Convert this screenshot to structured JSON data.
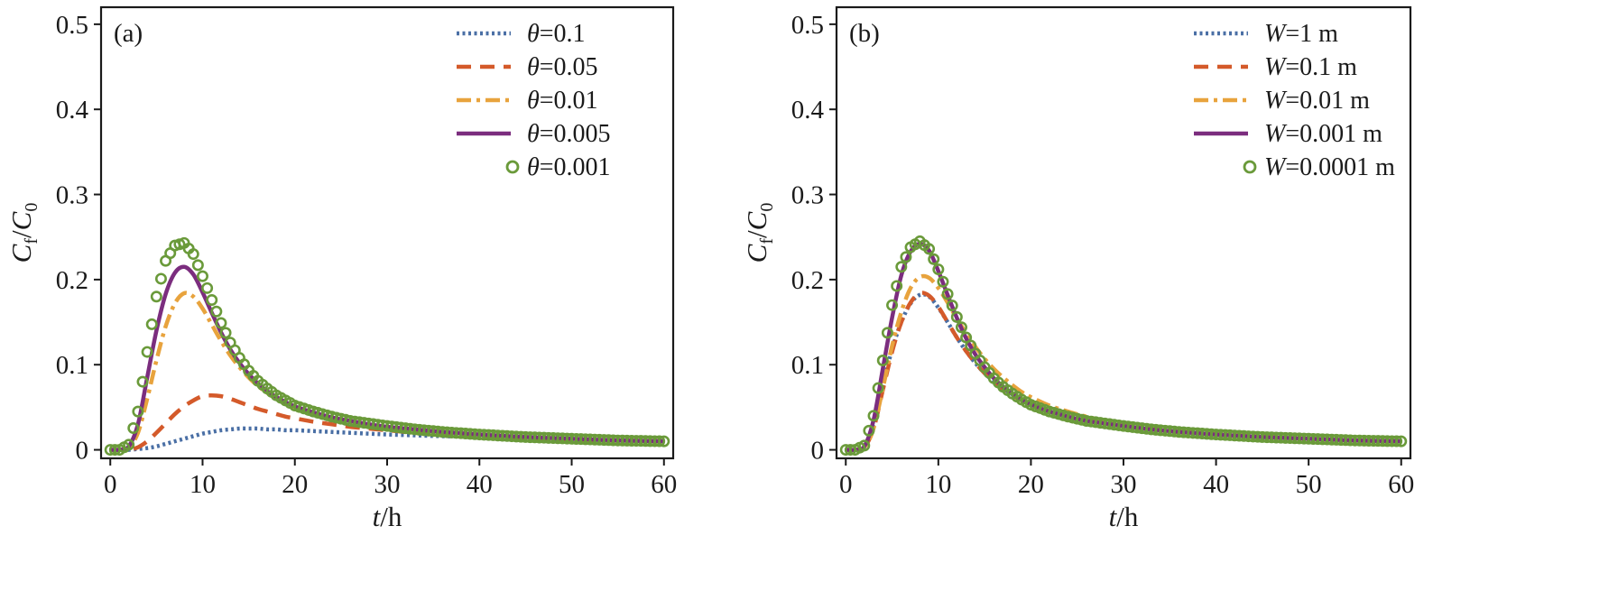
{
  "figure": {
    "panels": [
      {
        "id": "a",
        "panel_label": "(a)",
        "xlabel": {
          "var": "t",
          "unit": "/h"
        },
        "ylabel": {
          "main": "C",
          "sub_f": "f",
          "slash": "/",
          "main2": "C",
          "sub_0": "0"
        }
      },
      {
        "id": "b",
        "panel_label": "(b)",
        "xlabel": {
          "var": "t",
          "unit": "/h"
        },
        "ylabel": {
          "main": "C",
          "sub_f": "f",
          "slash": "/",
          "main2": "C",
          "sub_0": "0"
        }
      }
    ]
  },
  "chart_data": [
    {
      "type": "line",
      "title": "",
      "panel_label": "(a)",
      "xlabel": "t/h",
      "ylabel": "Cf/C0",
      "xlim": [
        -1,
        61
      ],
      "ylim": [
        -0.01,
        0.52
      ],
      "xticks": [
        0,
        10,
        20,
        30,
        40,
        50,
        60
      ],
      "xtick_labels": [
        "0",
        "10",
        "20",
        "30",
        "40",
        "50",
        "60"
      ],
      "yticks": [
        0,
        0.1,
        0.2,
        0.3,
        0.4,
        0.5
      ],
      "ytick_labels": [
        "0",
        "0.1",
        "0.2",
        "0.3",
        "0.4",
        "0.5"
      ],
      "grid": false,
      "legend_position": "top-right",
      "x": [
        0,
        1,
        2,
        3,
        4,
        5,
        6,
        7,
        8,
        9,
        10,
        11,
        12,
        13,
        14,
        15,
        16,
        17,
        18,
        19,
        20,
        22,
        24,
        26,
        28,
        30,
        33,
        36,
        40,
        45,
        50,
        55,
        60
      ],
      "series": [
        {
          "name_var": "θ",
          "name_value": "=0.1",
          "color": "#4a6fa5",
          "style": "dotted",
          "values": [
            0,
            0,
            0,
            0.001,
            0.002,
            0.004,
            0.007,
            0.01,
            0.013,
            0.016,
            0.019,
            0.021,
            0.023,
            0.024,
            0.025,
            0.025,
            0.025,
            0.024,
            0.024,
            0.023,
            0.023,
            0.022,
            0.021,
            0.02,
            0.019,
            0.018,
            0.017,
            0.016,
            0.015,
            0.013,
            0.012,
            0.011,
            0.01
          ]
        },
        {
          "name_var": "θ",
          "name_value": "=0.05",
          "color": "#d45a2a",
          "style": "dashed",
          "values": [
            0,
            0,
            0,
            0.003,
            0.01,
            0.02,
            0.031,
            0.042,
            0.051,
            0.058,
            0.063,
            0.064,
            0.063,
            0.06,
            0.056,
            0.052,
            0.048,
            0.045,
            0.042,
            0.039,
            0.037,
            0.033,
            0.03,
            0.027,
            0.025,
            0.023,
            0.02,
            0.018,
            0.016,
            0.014,
            0.012,
            0.011,
            0.01
          ]
        },
        {
          "name_var": "θ",
          "name_value": "=0.01",
          "color": "#e8a33d",
          "style": "dashdot",
          "values": [
            0,
            0,
            0.003,
            0.02,
            0.06,
            0.105,
            0.145,
            0.172,
            0.184,
            0.18,
            0.166,
            0.147,
            0.128,
            0.111,
            0.097,
            0.085,
            0.075,
            0.067,
            0.06,
            0.055,
            0.05,
            0.043,
            0.038,
            0.034,
            0.03,
            0.027,
            0.024,
            0.021,
            0.018,
            0.015,
            0.013,
            0.011,
            0.01
          ]
        },
        {
          "name_var": "θ",
          "name_value": "=0.005",
          "color": "#7b2d7e",
          "style": "solid",
          "values": [
            0,
            0,
            0.004,
            0.03,
            0.085,
            0.14,
            0.183,
            0.208,
            0.215,
            0.206,
            0.185,
            0.161,
            0.138,
            0.118,
            0.102,
            0.089,
            0.078,
            0.069,
            0.062,
            0.056,
            0.051,
            0.044,
            0.038,
            0.034,
            0.03,
            0.027,
            0.024,
            0.021,
            0.018,
            0.015,
            0.013,
            0.011,
            0.01
          ]
        },
        {
          "name_var": "θ",
          "name_value": "=0.001",
          "color": "#6a9a3a",
          "style": "circles",
          "values": [
            0,
            0,
            0.006,
            0.045,
            0.115,
            0.18,
            0.222,
            0.24,
            0.243,
            0.23,
            0.204,
            0.176,
            0.149,
            0.126,
            0.108,
            0.093,
            0.081,
            0.072,
            0.064,
            0.058,
            0.052,
            0.045,
            0.039,
            0.034,
            0.031,
            0.028,
            0.024,
            0.021,
            0.018,
            0.015,
            0.013,
            0.011,
            0.01
          ]
        }
      ]
    },
    {
      "type": "line",
      "title": "",
      "panel_label": "(b)",
      "xlabel": "t/h",
      "ylabel": "Cf/C0",
      "xlim": [
        -1,
        61
      ],
      "ylim": [
        -0.01,
        0.52
      ],
      "xticks": [
        0,
        10,
        20,
        30,
        40,
        50,
        60
      ],
      "xtick_labels": [
        "0",
        "10",
        "20",
        "30",
        "40",
        "50",
        "60"
      ],
      "yticks": [
        0,
        0.1,
        0.2,
        0.3,
        0.4,
        0.5
      ],
      "ytick_labels": [
        "0",
        "0.1",
        "0.2",
        "0.3",
        "0.4",
        "0.5"
      ],
      "grid": false,
      "legend_position": "top-right",
      "x": [
        0,
        1,
        2,
        3,
        4,
        5,
        6,
        7,
        8,
        9,
        10,
        11,
        12,
        13,
        14,
        15,
        16,
        17,
        18,
        19,
        20,
        22,
        24,
        26,
        28,
        30,
        33,
        36,
        40,
        45,
        50,
        55,
        60
      ],
      "series": [
        {
          "name_var": "W",
          "name_value": "=1 m",
          "color": "#4a6fa5",
          "style": "dotted",
          "values": [
            0,
            0,
            0.003,
            0.03,
            0.075,
            0.118,
            0.15,
            0.172,
            0.182,
            0.18,
            0.167,
            0.15,
            0.132,
            0.116,
            0.102,
            0.09,
            0.08,
            0.072,
            0.065,
            0.059,
            0.054,
            0.046,
            0.04,
            0.035,
            0.031,
            0.028,
            0.024,
            0.021,
            0.018,
            0.015,
            0.013,
            0.011,
            0.01
          ]
        },
        {
          "name_var": "W",
          "name_value": "=0.1 m",
          "color": "#d45a2a",
          "style": "dashed",
          "values": [
            0,
            0,
            0.003,
            0.025,
            0.07,
            0.115,
            0.15,
            0.173,
            0.184,
            0.181,
            0.168,
            0.15,
            0.132,
            0.116,
            0.102,
            0.09,
            0.08,
            0.071,
            0.064,
            0.058,
            0.053,
            0.045,
            0.039,
            0.034,
            0.031,
            0.028,
            0.024,
            0.021,
            0.018,
            0.015,
            0.013,
            0.011,
            0.01
          ]
        },
        {
          "name_var": "W",
          "name_value": "=0.01 m",
          "color": "#e8a33d",
          "style": "dashdot",
          "values": [
            0,
            0,
            0.003,
            0.025,
            0.072,
            0.122,
            0.162,
            0.19,
            0.203,
            0.202,
            0.19,
            0.173,
            0.154,
            0.137,
            0.121,
            0.107,
            0.095,
            0.085,
            0.076,
            0.068,
            0.062,
            0.052,
            0.045,
            0.039,
            0.034,
            0.03,
            0.026,
            0.022,
            0.019,
            0.016,
            0.013,
            0.011,
            0.01
          ]
        },
        {
          "name_var": "W",
          "name_value": "=0.001 m",
          "color": "#7b2d7e",
          "style": "solid",
          "values": [
            0,
            0,
            0.004,
            0.035,
            0.095,
            0.155,
            0.205,
            0.233,
            0.242,
            0.234,
            0.21,
            0.182,
            0.155,
            0.131,
            0.112,
            0.097,
            0.084,
            0.074,
            0.066,
            0.059,
            0.053,
            0.045,
            0.039,
            0.034,
            0.031,
            0.028,
            0.024,
            0.021,
            0.018,
            0.015,
            0.013,
            0.011,
            0.01
          ]
        },
        {
          "name_var": "W",
          "name_value": "=0.0001 m",
          "color": "#6a9a3a",
          "style": "circles",
          "values": [
            0,
            0,
            0.005,
            0.04,
            0.105,
            0.17,
            0.215,
            0.238,
            0.245,
            0.236,
            0.212,
            0.183,
            0.156,
            0.132,
            0.113,
            0.097,
            0.084,
            0.074,
            0.066,
            0.059,
            0.053,
            0.045,
            0.039,
            0.034,
            0.031,
            0.028,
            0.024,
            0.021,
            0.018,
            0.015,
            0.013,
            0.011,
            0.01
          ]
        }
      ]
    }
  ]
}
